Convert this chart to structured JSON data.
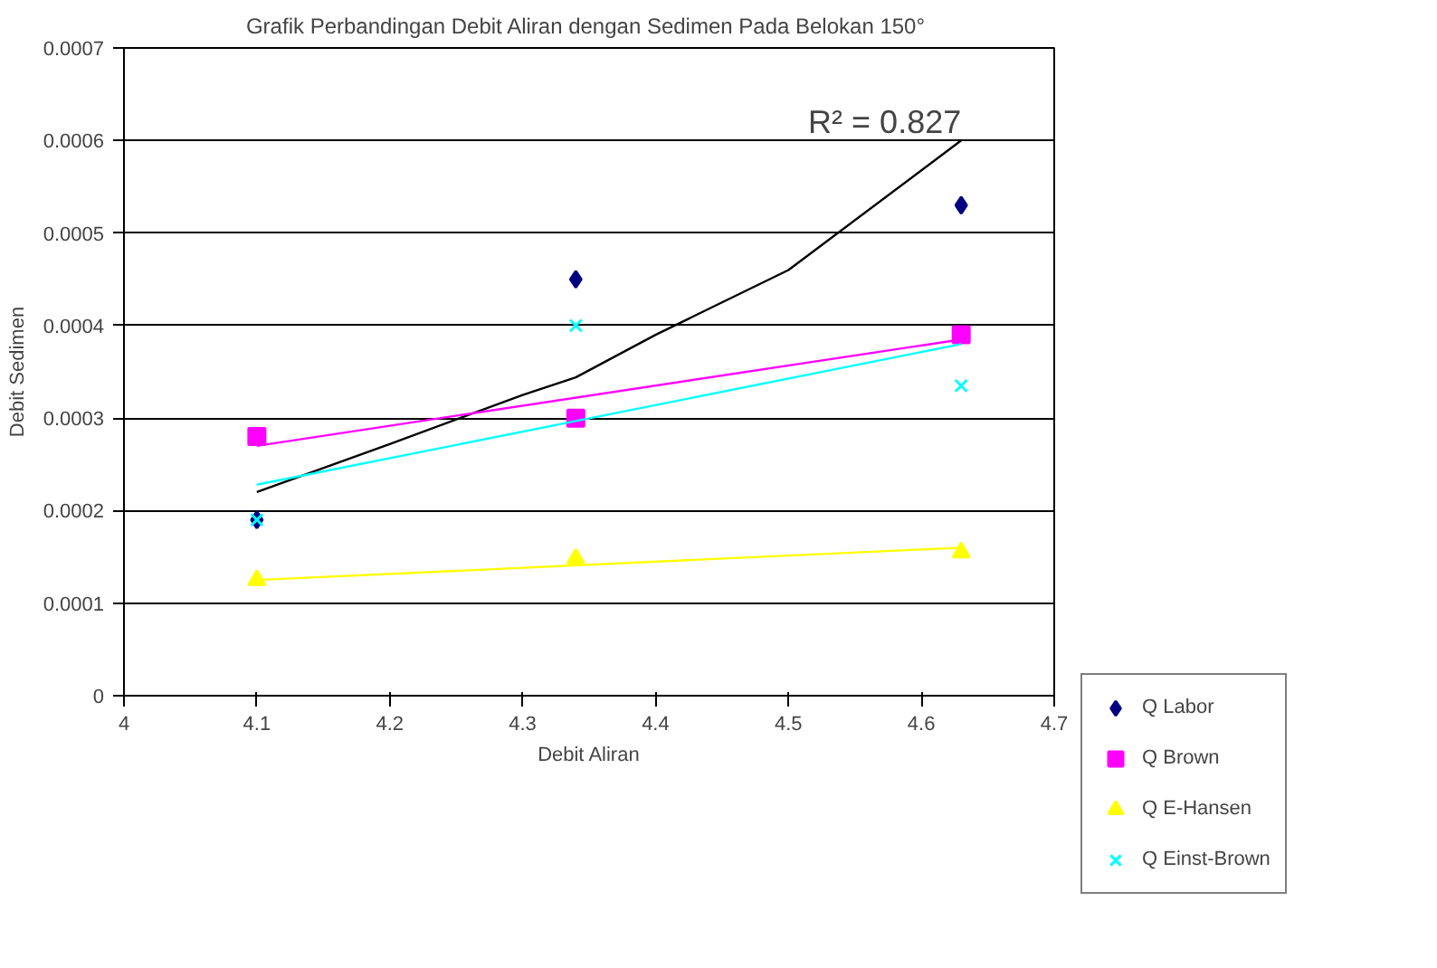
{
  "chart_data": {
    "type": "scatter",
    "title": "Grafik Perbandingan Debit Aliran dengan Sedimen  Pada Belokan 150°",
    "xlabel": "Debit Aliran",
    "ylabel": "Debit Sedimen",
    "x": [
      4.1,
      4.34,
      4.63
    ],
    "series": [
      {
        "name": "Q Labor",
        "color": "#000080",
        "marker": "diamond",
        "values": [
          0.00019,
          0.00045,
          0.00053
        ]
      },
      {
        "name": "Q Brown",
        "color": "#ff00ff",
        "marker": "square",
        "values": [
          0.00028,
          0.0003,
          0.00039
        ]
      },
      {
        "name": "Q E-Hansen",
        "color": "#ffff00",
        "marker": "triangle",
        "values": [
          0.000125,
          0.000148,
          0.000155
        ]
      },
      {
        "name": "Q Einst-Brown",
        "color": "#00ffff",
        "marker": "cross",
        "values": [
          0.00019,
          0.0004,
          0.000335
        ]
      },
      {
        "type": "line",
        "color": "#000000",
        "x": [
          4.1,
          4.2,
          4.3,
          4.34,
          4.4,
          4.5,
          4.63
        ],
        "values": [
          0.00022,
          0.000272,
          0.000325,
          0.000344,
          0.00039,
          0.00046,
          0.0006
        ]
      },
      {
        "type": "line",
        "color": "#ff00ff",
        "x": [
          4.1,
          4.63
        ],
        "values": [
          0.00027,
          0.000385
        ]
      },
      {
        "type": "line",
        "color": "#00ffff",
        "x": [
          4.1,
          4.63
        ],
        "values": [
          0.000228,
          0.00038
        ]
      },
      {
        "type": "line",
        "color": "#ffff00",
        "x": [
          4.1,
          4.63
        ],
        "values": [
          0.000125,
          0.00016
        ]
      }
    ],
    "annotations": [
      {
        "text": "R² = 0.827",
        "x": 4.63,
        "y": 0.0006
      }
    ],
    "xlim": [
      4,
      4.7
    ],
    "xticks": [
      4,
      4.1,
      4.2,
      4.3,
      4.4,
      4.5,
      4.6,
      4.7
    ],
    "ylim": [
      0,
      0.0007
    ],
    "yticks": [
      0,
      0.0001,
      0.0002,
      0.0003,
      0.0004,
      0.0005,
      0.0006,
      0.0007
    ],
    "grid": "y",
    "legend": "right"
  }
}
